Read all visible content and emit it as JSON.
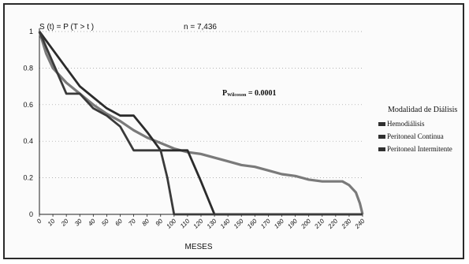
{
  "chart_data": {
    "type": "line",
    "title_formula": "S (t) = P (T > t )",
    "n_label": "n = 7,436",
    "p_label_main": "P",
    "p_label_sub": "Wilcoxon",
    "p_label_value": " = 0.0001",
    "xlabel": "MESES",
    "ylabel": "",
    "xlim": [
      0,
      240
    ],
    "ylim": [
      0,
      1
    ],
    "x_ticks": [
      "0",
      "10",
      "20",
      "30",
      "40",
      "50",
      "60",
      "70",
      "80",
      "90",
      "100",
      "110",
      "120",
      "130",
      "140",
      "150",
      "160",
      "170",
      "180",
      "190",
      "200",
      "210",
      "220",
      "230",
      "240"
    ],
    "y_ticks": [
      "0",
      "0.2",
      "0.4",
      "0.6",
      "0.8",
      "1"
    ],
    "legend_title": "Modalidad de Diálisis",
    "series": [
      {
        "name": "Hemodiálisis",
        "color": "#7a7a7a",
        "points": [
          [
            0,
            1.0
          ],
          [
            5,
            0.88
          ],
          [
            10,
            0.8
          ],
          [
            20,
            0.72
          ],
          [
            30,
            0.66
          ],
          [
            40,
            0.6
          ],
          [
            50,
            0.55
          ],
          [
            60,
            0.51
          ],
          [
            70,
            0.46
          ],
          [
            80,
            0.42
          ],
          [
            90,
            0.39
          ],
          [
            100,
            0.36
          ],
          [
            110,
            0.34
          ],
          [
            120,
            0.33
          ],
          [
            130,
            0.31
          ],
          [
            140,
            0.29
          ],
          [
            150,
            0.27
          ],
          [
            160,
            0.26
          ],
          [
            170,
            0.24
          ],
          [
            180,
            0.22
          ],
          [
            190,
            0.21
          ],
          [
            200,
            0.19
          ],
          [
            210,
            0.18
          ],
          [
            220,
            0.18
          ],
          [
            225,
            0.18
          ],
          [
            230,
            0.16
          ],
          [
            235,
            0.12
          ],
          [
            238,
            0.06
          ],
          [
            240,
            0.0
          ]
        ]
      },
      {
        "name": "Peritoneal Continua",
        "color": "#2b2b2b",
        "points": [
          [
            0,
            1.0
          ],
          [
            10,
            0.9
          ],
          [
            20,
            0.8
          ],
          [
            30,
            0.7
          ],
          [
            40,
            0.64
          ],
          [
            50,
            0.58
          ],
          [
            60,
            0.54
          ],
          [
            70,
            0.54
          ],
          [
            80,
            0.45
          ],
          [
            90,
            0.35
          ],
          [
            100,
            0.35
          ],
          [
            110,
            0.35
          ],
          [
            120,
            0.18
          ],
          [
            130,
            0.0
          ],
          [
            240,
            0.0
          ]
        ]
      },
      {
        "name": "Peritoneal Intermitente",
        "color": "#3a3a3a",
        "points": [
          [
            0,
            1.0
          ],
          [
            10,
            0.83
          ],
          [
            20,
            0.66
          ],
          [
            30,
            0.66
          ],
          [
            40,
            0.58
          ],
          [
            50,
            0.54
          ],
          [
            60,
            0.48
          ],
          [
            70,
            0.35
          ],
          [
            80,
            0.35
          ],
          [
            90,
            0.35
          ],
          [
            95,
            0.2
          ],
          [
            100,
            0.0
          ],
          [
            240,
            0.0
          ]
        ]
      }
    ]
  }
}
